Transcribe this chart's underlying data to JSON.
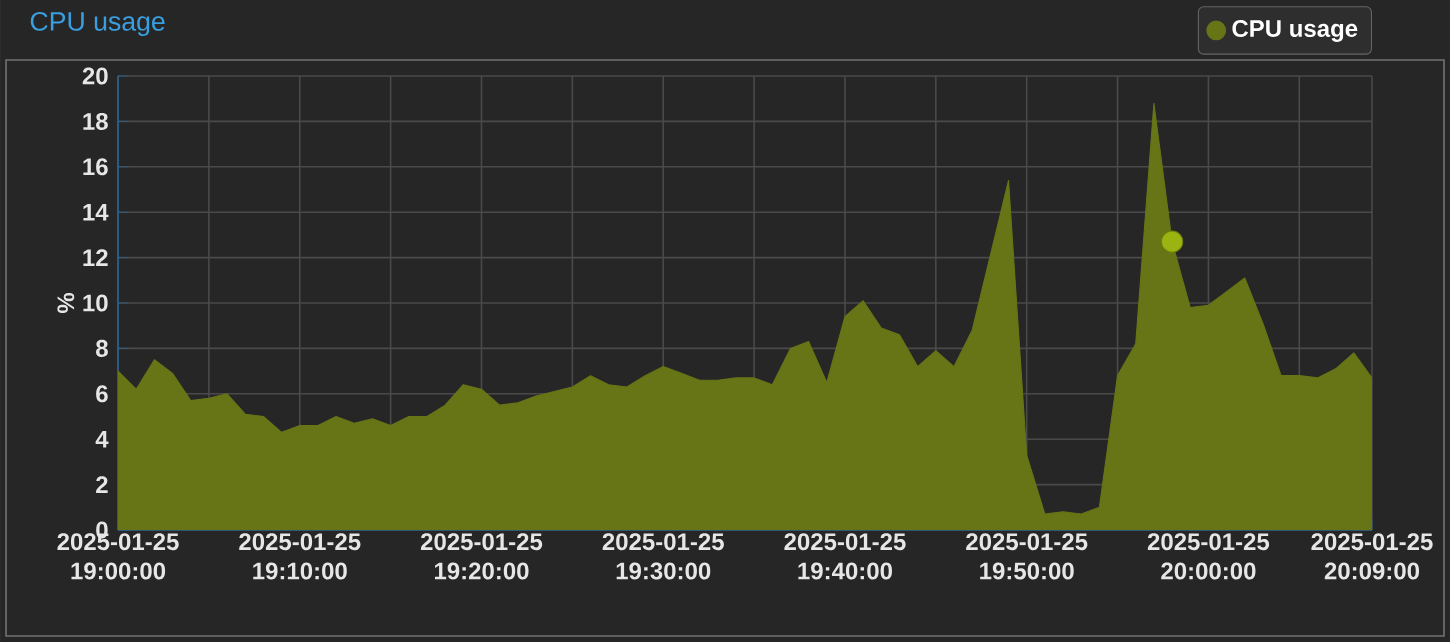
{
  "chart_data": {
    "type": "area",
    "title": "CPU usage",
    "ylabel": "%",
    "x": [
      "2025-01-25T19:00",
      "2025-01-25T19:01",
      "2025-01-25T19:02",
      "2025-01-25T19:03",
      "2025-01-25T19:04",
      "2025-01-25T19:05",
      "2025-01-25T19:06",
      "2025-01-25T19:07",
      "2025-01-25T19:08",
      "2025-01-25T19:09",
      "2025-01-25T19:10",
      "2025-01-25T19:11",
      "2025-01-25T19:12",
      "2025-01-25T19:13",
      "2025-01-25T19:14",
      "2025-01-25T19:15",
      "2025-01-25T19:16",
      "2025-01-25T19:17",
      "2025-01-25T19:18",
      "2025-01-25T19:19",
      "2025-01-25T19:20",
      "2025-01-25T19:21",
      "2025-01-25T19:22",
      "2025-01-25T19:23",
      "2025-01-25T19:24",
      "2025-01-25T19:25",
      "2025-01-25T19:26",
      "2025-01-25T19:27",
      "2025-01-25T19:28",
      "2025-01-25T19:29",
      "2025-01-25T19:30",
      "2025-01-25T19:31",
      "2025-01-25T19:32",
      "2025-01-25T19:33",
      "2025-01-25T19:34",
      "2025-01-25T19:35",
      "2025-01-25T19:36",
      "2025-01-25T19:37",
      "2025-01-25T19:38",
      "2025-01-25T19:39",
      "2025-01-25T19:40",
      "2025-01-25T19:41",
      "2025-01-25T19:42",
      "2025-01-25T19:43",
      "2025-01-25T19:44",
      "2025-01-25T19:45",
      "2025-01-25T19:46",
      "2025-01-25T19:47",
      "2025-01-25T19:48",
      "2025-01-25T19:49",
      "2025-01-25T19:50",
      "2025-01-25T19:51",
      "2025-01-25T19:52",
      "2025-01-25T19:53",
      "2025-01-25T19:54",
      "2025-01-25T19:55",
      "2025-01-25T19:56",
      "2025-01-25T19:57",
      "2025-01-25T19:58",
      "2025-01-25T19:59",
      "2025-01-25T20:00",
      "2025-01-25T20:01",
      "2025-01-25T20:02",
      "2025-01-25T20:03",
      "2025-01-25T20:04",
      "2025-01-25T20:05",
      "2025-01-25T20:06",
      "2025-01-25T20:07",
      "2025-01-25T20:08",
      "2025-01-25T20:09"
    ],
    "series": [
      {
        "name": "CPU usage",
        "color": "#677516",
        "values": [
          7.0,
          6.2,
          7.5,
          6.9,
          5.7,
          5.8,
          6.0,
          5.1,
          5.0,
          4.3,
          4.6,
          4.6,
          5.0,
          4.7,
          4.9,
          4.6,
          5.0,
          5.0,
          5.5,
          6.4,
          6.2,
          5.5,
          5.6,
          5.9,
          6.1,
          6.3,
          6.8,
          6.4,
          6.3,
          6.8,
          7.2,
          6.9,
          6.6,
          6.6,
          6.7,
          6.7,
          6.4,
          8.0,
          8.3,
          6.5,
          9.4,
          10.1,
          8.9,
          8.6,
          7.2,
          7.9,
          7.2,
          8.8,
          12.1,
          15.4,
          3.3,
          0.7,
          0.8,
          0.7,
          1.0,
          6.8,
          8.2,
          18.8,
          12.7,
          9.8,
          9.9,
          10.5,
          11.1,
          9.1,
          6.8,
          6.8,
          6.7,
          7.1,
          7.8,
          6.7
        ]
      },
      {
        "type": "scatter",
        "color": "#9cb412",
        "x": [
          "2025-01-25T19:58"
        ],
        "values": [
          12.7
        ]
      }
    ],
    "xlim": [
      "2025-01-25T19:00",
      "2025-01-25T20:09"
    ],
    "xticks": [
      {
        "value": "2025-01-25T19:00",
        "label": "2025-01-25 19:00:00"
      },
      {
        "value": "2025-01-25T19:05",
        "label": null
      },
      {
        "value": "2025-01-25T19:10",
        "label": "2025-01-25 19:10:00"
      },
      {
        "value": "2025-01-25T19:15",
        "label": null
      },
      {
        "value": "2025-01-25T19:20",
        "label": "2025-01-25 19:20:00"
      },
      {
        "value": "2025-01-25T19:25",
        "label": null
      },
      {
        "value": "2025-01-25T19:30",
        "label": "2025-01-25 19:30:00"
      },
      {
        "value": "2025-01-25T19:35",
        "label": null
      },
      {
        "value": "2025-01-25T19:40",
        "label": "2025-01-25 19:40:00"
      },
      {
        "value": "2025-01-25T19:45",
        "label": null
      },
      {
        "value": "2025-01-25T19:50",
        "label": "2025-01-25 19:50:00"
      },
      {
        "value": "2025-01-25T19:55",
        "label": null
      },
      {
        "value": "2025-01-25T20:00",
        "label": "2025-01-25 20:00:00"
      },
      {
        "value": "2025-01-25T20:05",
        "label": null
      },
      {
        "value": "2025-01-25T20:09",
        "label": "2025-01-25 20:09:00"
      }
    ],
    "ylim": [
      0,
      20
    ],
    "yticks": [
      0,
      2,
      4,
      6,
      8,
      10,
      12,
      14,
      16,
      18,
      20
    ],
    "grid": true,
    "legend": "top right"
  }
}
